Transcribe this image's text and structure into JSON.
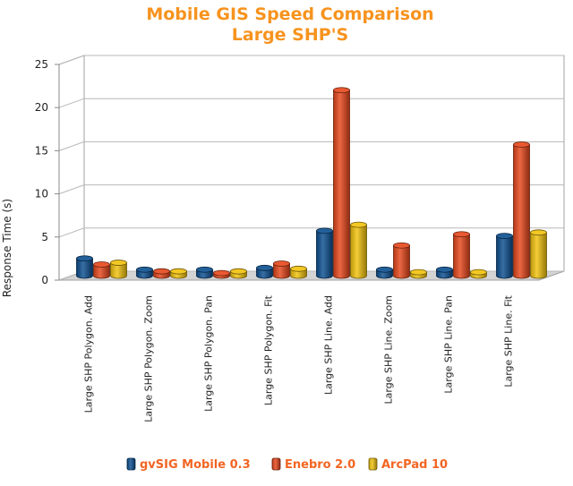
{
  "chart_data": {
    "type": "bar",
    "title": "Mobile GIS Speed Comparison",
    "subtitle": "Large SHP'S",
    "ylabel": "Response Time (s)",
    "xlabel": "",
    "ylim": [
      0,
      25
    ],
    "yticks": [
      "0",
      "5",
      "10",
      "15",
      "20",
      "25"
    ],
    "grid": true,
    "legend_position": "bottom",
    "categories": [
      "Large SHP Polygon. Add",
      "Large SHP Polygon. Zoom",
      "Large SHP Polygon. Pan",
      "Large SHP Polygon. Fit",
      "Large SHP Line. Add",
      "Large SHP Line. Zoom",
      "Large SHP Line. Pan",
      "Large SHP Line. Fit"
    ],
    "series": [
      {
        "name": "gvSIG Mobile 0.3",
        "color": "#0b4e8f",
        "values": [
          2.0,
          0.7,
          0.7,
          0.9,
          5.2,
          0.7,
          0.7,
          4.6
        ]
      },
      {
        "name": "Enebro 2.0",
        "color": "#e6461a",
        "values": [
          1.3,
          0.5,
          0.3,
          1.4,
          21.5,
          3.5,
          4.8,
          15.2
        ]
      },
      {
        "name": "ArcPad 10",
        "color": "#f2c20c",
        "values": [
          1.5,
          0.5,
          0.5,
          0.8,
          5.9,
          0.4,
          0.4,
          5.0
        ]
      }
    ]
  },
  "colors": {
    "title": "#f7931e",
    "legend_text": "#f26522"
  }
}
